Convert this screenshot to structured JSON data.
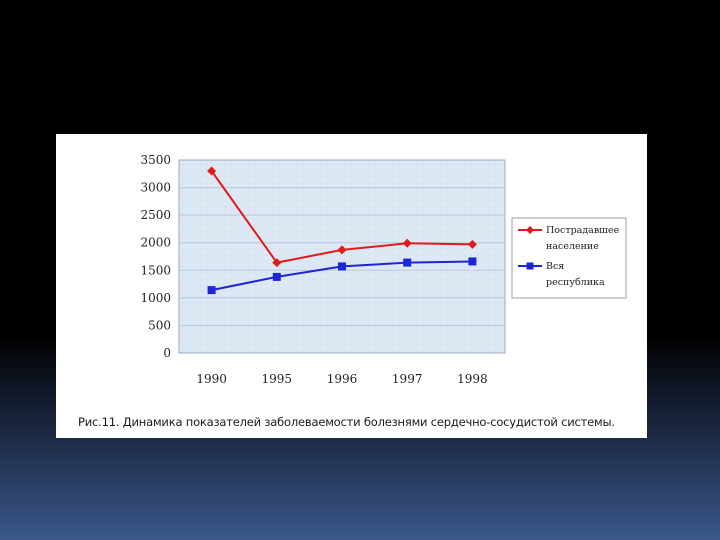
{
  "caption": "Рис.11. Динамика показателей заболеваемости болезнями сердечно-сосудистой системы.",
  "colors": {
    "plot_bg": "#dde8f5",
    "grid": "#b9c8da",
    "series_red": "#e21a1a",
    "series_blue": "#1a26d8"
  },
  "chart_data": {
    "type": "line",
    "title": "",
    "xlabel": "",
    "ylabel": "",
    "categories": [
      "1990",
      "1995",
      "1996",
      "1997",
      "1998"
    ],
    "ylim": [
      0,
      3500
    ],
    "yticks": [
      0,
      500,
      1000,
      1500,
      2000,
      2500,
      3000,
      3500
    ],
    "grid": true,
    "legend_position": "right",
    "series": [
      {
        "name": "Пострадавшее население",
        "name_lines": [
          "Пострадавшее",
          "население"
        ],
        "marker": "diamond",
        "color": "#e21a1a",
        "values": [
          3300,
          1640,
          1870,
          1990,
          1970
        ]
      },
      {
        "name": "Вся республика",
        "name_lines": [
          "Вся",
          "республика"
        ],
        "marker": "square",
        "color": "#1a26d8",
        "values": [
          1140,
          1380,
          1570,
          1640,
          1660
        ]
      }
    ]
  }
}
